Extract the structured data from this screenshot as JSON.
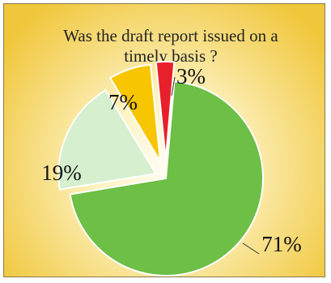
{
  "chart_data": {
    "type": "pie",
    "title": [
      "Was the draft report issued on a",
      "timely basis ?"
    ],
    "slices": [
      {
        "label": "71%",
        "value": 71,
        "color": "#6dbf45"
      },
      {
        "label": "19%",
        "value": 19,
        "color": "#d5efcf"
      },
      {
        "label": "7%",
        "value": 7,
        "color": "#f7c600"
      },
      {
        "label": "3%",
        "value": 3,
        "color": "#e8202a"
      }
    ],
    "exploded": true,
    "legend": "none",
    "background": {
      "outer": "#f0c63a",
      "inner": "#fffdf2"
    }
  }
}
